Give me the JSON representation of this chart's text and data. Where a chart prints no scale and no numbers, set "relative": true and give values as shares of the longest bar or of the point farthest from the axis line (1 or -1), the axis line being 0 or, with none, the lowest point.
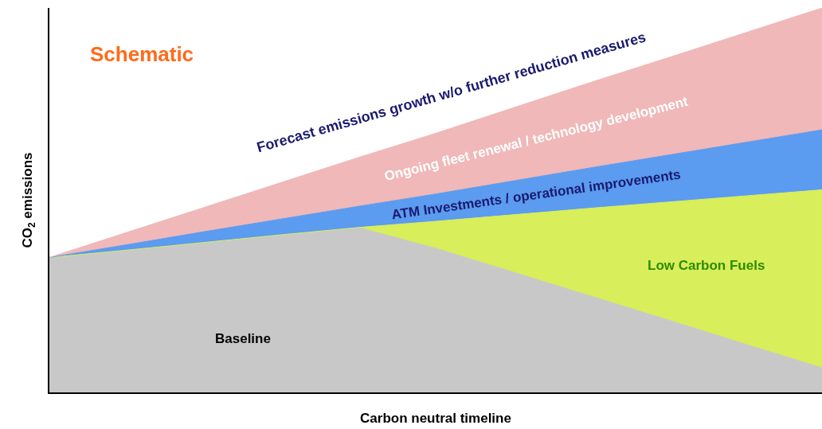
{
  "chart_data": {
    "type": "area",
    "stacked": true,
    "relative": true,
    "xlabel": "Carbon neutral timeline",
    "ylabel": "CO$_{2}$ emissions",
    "legend": false,
    "categories": [
      null,
      null,
      null,
      null,
      null,
      null,
      null,
      null,
      null,
      null,
      null
    ],
    "annotations": [
      "Schematic",
      "Forecast emissions growth w/o further reduction measures"
    ],
    "series": [
      {
        "name": "Baseline",
        "color": "#c8c8c8",
        "values": [
          0.351,
          0.37,
          0.39,
          0.41,
          0.429,
          0.375,
          0.313,
          0.251,
          0.189,
          0.126,
          0.064
        ]
      },
      {
        "name": "Low Carbon Fuels",
        "color": "#d8ee5a",
        "values": [
          0,
          0,
          0,
          0,
          0,
          0.07,
          0.149,
          0.228,
          0.306,
          0.385,
          0.463
        ]
      },
      {
        "name": "ATM Investments / operational improvements",
        "color": "#5b9bf0",
        "values": [
          0,
          0.014,
          0.028,
          0.041,
          0.055,
          0.071,
          0.088,
          0.105,
          0.122,
          0.139,
          0.156
        ]
      },
      {
        "name": "Ongoing fleet renewal / technology development",
        "color": "#f0b8b8",
        "values": [
          0,
          0.032,
          0.063,
          0.095,
          0.127,
          0.158,
          0.19,
          0.222,
          0.253,
          0.285,
          0.317
        ]
      }
    ]
  }
}
